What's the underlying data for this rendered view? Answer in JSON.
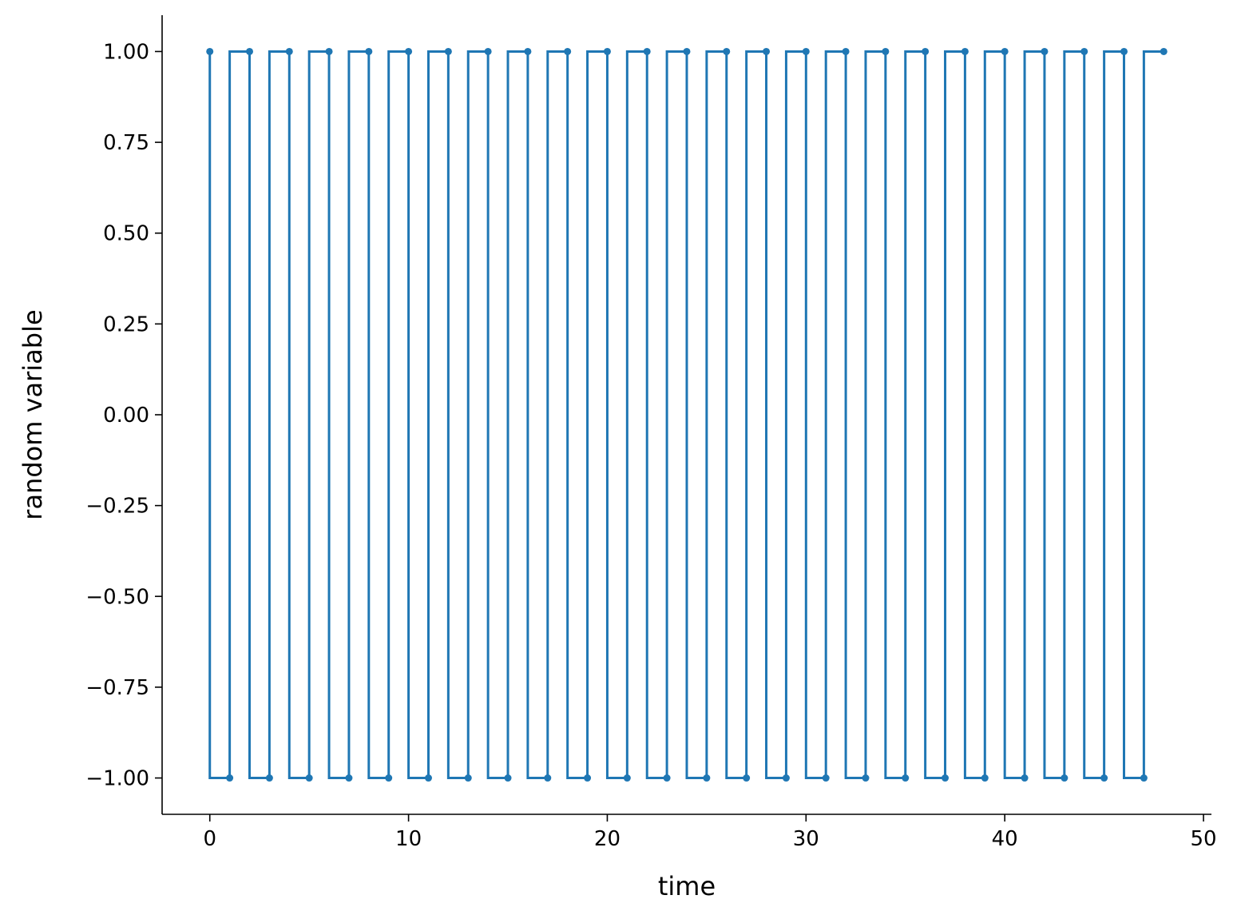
{
  "chart_data": {
    "type": "line",
    "drawstyle": "steps-pre",
    "marker": "dot",
    "title": "",
    "xlabel": "time",
    "ylabel": "random variable",
    "xlim": [
      -2.4,
      50.4
    ],
    "ylim": [
      -1.1,
      1.1
    ],
    "xticks": [
      0,
      10,
      20,
      30,
      40,
      50
    ],
    "xtick_labels": [
      "0",
      "10",
      "20",
      "30",
      "40",
      "50"
    ],
    "yticks": [
      1.0,
      0.75,
      0.5,
      0.25,
      0.0,
      -0.25,
      -0.5,
      -0.75,
      -1.0
    ],
    "ytick_labels": [
      "1.00",
      "0.75",
      "0.50",
      "0.25",
      "0.00",
      "−0.25",
      "−0.50",
      "−0.75",
      "−1.00"
    ],
    "grid": false,
    "color": "#1f77b4",
    "x": [
      0,
      1,
      2,
      3,
      4,
      5,
      6,
      7,
      8,
      9,
      10,
      11,
      12,
      13,
      14,
      15,
      16,
      17,
      18,
      19,
      20,
      21,
      22,
      23,
      24,
      25,
      26,
      27,
      28,
      29,
      30,
      31,
      32,
      33,
      34,
      35,
      36,
      37,
      38,
      39,
      40,
      41,
      42,
      43,
      44,
      45,
      46,
      47,
      48
    ],
    "y": [
      1,
      -1,
      1,
      -1,
      1,
      -1,
      1,
      -1,
      1,
      -1,
      1,
      -1,
      1,
      -1,
      1,
      -1,
      1,
      -1,
      1,
      -1,
      1,
      -1,
      1,
      -1,
      1,
      -1,
      1,
      -1,
      1,
      -1,
      1,
      -1,
      1,
      -1,
      1,
      -1,
      1,
      -1,
      1,
      -1,
      1,
      -1,
      1,
      -1,
      1,
      -1,
      1,
      -1,
      1
    ]
  }
}
